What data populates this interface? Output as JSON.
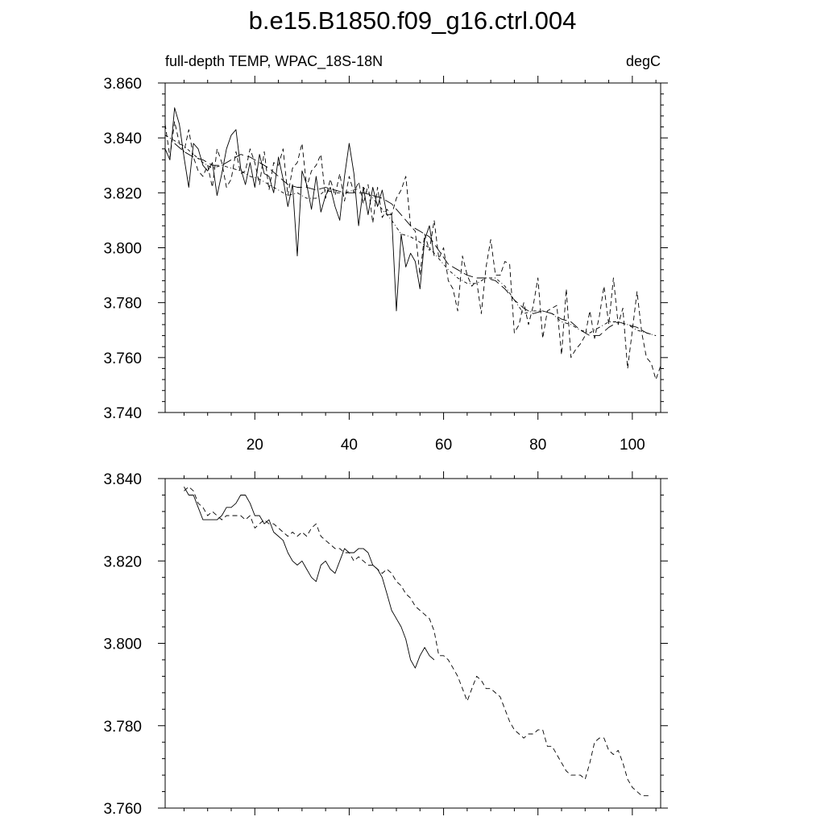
{
  "title": "b.e15.B1850.f09_g16.ctrl.004",
  "chart_data": [
    {
      "type": "line",
      "left_label": "full-depth TEMP, WPAC_18S-18N",
      "right_label": "degC",
      "xlim": [
        1,
        106
      ],
      "ylim": [
        3.74,
        3.86
      ],
      "x_ticks": [
        20,
        40,
        60,
        80,
        100
      ],
      "x_tick_labels": [
        "20",
        "40",
        "60",
        "80",
        "100"
      ],
      "y_ticks": [
        3.74,
        3.76,
        3.78,
        3.8,
        3.82,
        3.84,
        3.86
      ],
      "y_tick_labels": [
        "3.740",
        "3.760",
        "3.780",
        "3.800",
        "3.820",
        "3.840",
        "3.860"
      ],
      "series": [
        {
          "style": "solid",
          "x": [
            1,
            2,
            3,
            4,
            5,
            6,
            7,
            8,
            9,
            10,
            11,
            12,
            13,
            14,
            15,
            16,
            17,
            18,
            19,
            20,
            21,
            22,
            23,
            24,
            25,
            26,
            27,
            28,
            29,
            30,
            31,
            32,
            33,
            34,
            35,
            36,
            37,
            38,
            39,
            40,
            41,
            42,
            43,
            44,
            45,
            46,
            47,
            48,
            49,
            50,
            51,
            52,
            53,
            54,
            55,
            56,
            57,
            58
          ],
          "values": [
            3.836,
            3.832,
            3.851,
            3.845,
            3.833,
            3.822,
            3.838,
            3.836,
            3.83,
            3.828,
            3.831,
            3.819,
            3.827,
            3.836,
            3.841,
            3.843,
            3.829,
            3.823,
            3.831,
            3.822,
            3.834,
            3.827,
            3.826,
            3.82,
            3.833,
            3.825,
            3.815,
            3.823,
            3.797,
            3.828,
            3.823,
            3.814,
            3.826,
            3.813,
            3.819,
            3.822,
            3.815,
            3.81,
            3.826,
            3.838,
            3.827,
            3.808,
            3.822,
            3.812,
            3.822,
            3.815,
            3.821,
            3.812,
            3.812,
            3.777,
            3.805,
            3.793,
            3.798,
            3.795,
            3.785,
            3.803,
            3.808,
            3.797
          ]
        },
        {
          "style": "dashed",
          "x": [
            1,
            2,
            3,
            4,
            5,
            6,
            7,
            8,
            9,
            10,
            11,
            12,
            13,
            14,
            15,
            16,
            17,
            18,
            19,
            20,
            21,
            22,
            23,
            24,
            25,
            26,
            27,
            28,
            29,
            30,
            31,
            32,
            33,
            34,
            35,
            36,
            37,
            38,
            39,
            40,
            41,
            42,
            43,
            44,
            45,
            46,
            47,
            48,
            49,
            50,
            51,
            52,
            53,
            54,
            55,
            56,
            57,
            58,
            59,
            60,
            61,
            62,
            63,
            64,
            65,
            66,
            67,
            68,
            69,
            70,
            71,
            72,
            73,
            74,
            75,
            76,
            77,
            78,
            79,
            80,
            81,
            82,
            83,
            84,
            85,
            86,
            87,
            88,
            89,
            90,
            91,
            92,
            93,
            94,
            95,
            96,
            97,
            98,
            99,
            100,
            101,
            102,
            103,
            104,
            105,
            106
          ],
          "values": [
            3.845,
            3.833,
            3.846,
            3.838,
            3.835,
            3.843,
            3.833,
            3.828,
            3.826,
            3.83,
            3.822,
            3.836,
            3.831,
            3.822,
            3.825,
            3.835,
            3.827,
            3.828,
            3.836,
            3.831,
            3.823,
            3.835,
            3.821,
            3.831,
            3.83,
            3.836,
            3.819,
            3.829,
            3.831,
            3.838,
            3.822,
            3.828,
            3.83,
            3.834,
            3.818,
            3.825,
            3.819,
            3.827,
            3.817,
            3.826,
            3.82,
            3.824,
            3.816,
            3.823,
            3.809,
            3.822,
            3.811,
            3.814,
            3.812,
            3.818,
            3.821,
            3.826,
            3.808,
            3.806,
            3.79,
            3.805,
            3.799,
            3.81,
            3.796,
            3.8,
            3.788,
            3.785,
            3.777,
            3.797,
            3.79,
            3.786,
            3.788,
            3.776,
            3.793,
            3.803,
            3.79,
            3.79,
            3.795,
            3.794,
            3.769,
            3.772,
            3.78,
            3.772,
            3.779,
            3.789,
            3.767,
            3.777,
            3.778,
            3.779,
            3.761,
            3.785,
            3.76,
            3.763,
            3.765,
            3.768,
            3.777,
            3.767,
            3.775,
            3.786,
            3.772,
            3.789,
            3.772,
            3.778,
            3.756,
            3.77,
            3.784,
            3.769,
            3.76,
            3.758,
            3.752,
            3.757
          ]
        },
        {
          "style": "dash-dot",
          "x": [
            1,
            3,
            5,
            7,
            9,
            11,
            13,
            15,
            17,
            19,
            21,
            23,
            25,
            27,
            29,
            31,
            33,
            35,
            37,
            39,
            41,
            43,
            45,
            47,
            49,
            51,
            53,
            55,
            57,
            59,
            61,
            63,
            65,
            67,
            69,
            71,
            73,
            75,
            77,
            79,
            81,
            83,
            85,
            87,
            89,
            91,
            93,
            95,
            97,
            99,
            101,
            103,
            105
          ],
          "values": [
            3.841,
            3.839,
            3.837,
            3.834,
            3.831,
            3.829,
            3.83,
            3.829,
            3.828,
            3.826,
            3.825,
            3.823,
            3.821,
            3.819,
            3.82,
            3.818,
            3.818,
            3.821,
            3.82,
            3.82,
            3.821,
            3.822,
            3.818,
            3.814,
            3.81,
            3.805,
            3.804,
            3.802,
            3.8,
            3.796,
            3.792,
            3.789,
            3.787,
            3.787,
            3.789,
            3.789,
            3.786,
            3.781,
            3.776,
            3.777,
            3.777,
            3.776,
            3.773,
            3.772,
            3.77,
            3.769,
            3.771,
            3.773,
            3.773,
            3.772,
            3.77,
            3.769,
            3.768
          ]
        },
        {
          "style": "long-dash",
          "x": [
            3,
            5,
            7,
            9,
            11,
            13,
            15,
            17,
            19,
            21,
            23,
            25,
            27,
            29,
            31,
            33,
            35,
            37,
            39,
            41,
            43,
            45,
            47,
            49,
            51,
            53,
            55,
            57,
            59,
            61,
            63,
            65,
            67,
            69,
            71,
            73,
            75,
            77,
            79,
            81,
            83,
            85,
            87,
            89,
            91,
            93,
            95,
            97,
            99,
            101,
            103,
            105
          ],
          "values": [
            3.838,
            3.835,
            3.833,
            3.832,
            3.83,
            3.83,
            3.832,
            3.834,
            3.833,
            3.831,
            3.829,
            3.826,
            3.823,
            3.822,
            3.822,
            3.821,
            3.822,
            3.821,
            3.82,
            3.82,
            3.82,
            3.819,
            3.818,
            3.816,
            3.812,
            3.808,
            3.806,
            3.804,
            3.799,
            3.794,
            3.792,
            3.79,
            3.789,
            3.789,
            3.788,
            3.785,
            3.781,
            3.778,
            3.776,
            3.777,
            3.776,
            3.774,
            3.773,
            3.77,
            3.768,
            3.768,
            3.771,
            3.773,
            3.772,
            3.771,
            3.769,
            3.768
          ]
        }
      ]
    },
    {
      "type": "line",
      "xlim": [
        1,
        106
      ],
      "ylim": [
        3.76,
        3.84
      ],
      "x_ticks": [
        20,
        40,
        60,
        80,
        100
      ],
      "y_ticks": [
        3.76,
        3.78,
        3.8,
        3.82,
        3.84
      ],
      "y_tick_labels": [
        "3.760",
        "3.780",
        "3.800",
        "3.820",
        "3.840"
      ],
      "series": [
        {
          "style": "solid",
          "x": [
            5,
            6,
            7,
            8,
            9,
            10,
            11,
            12,
            13,
            14,
            15,
            16,
            17,
            18,
            19,
            20,
            21,
            22,
            23,
            24,
            25,
            26,
            27,
            28,
            29,
            30,
            31,
            32,
            33,
            34,
            35,
            36,
            37,
            38,
            39,
            40,
            41,
            42,
            43,
            44,
            45,
            46,
            47,
            48,
            49,
            50,
            51,
            52,
            53,
            54,
            55,
            56,
            57,
            58
          ],
          "values": [
            3.838,
            3.836,
            3.836,
            3.833,
            3.83,
            3.83,
            3.83,
            3.83,
            3.831,
            3.833,
            3.833,
            3.834,
            3.836,
            3.836,
            3.834,
            3.831,
            3.831,
            3.829,
            3.83,
            3.827,
            3.826,
            3.825,
            3.822,
            3.82,
            3.819,
            3.82,
            3.818,
            3.816,
            3.815,
            3.819,
            3.82,
            3.818,
            3.817,
            3.82,
            3.823,
            3.822,
            3.822,
            3.823,
            3.823,
            3.822,
            3.819,
            3.818,
            3.816,
            3.812,
            3.808,
            3.806,
            3.804,
            3.801,
            3.796,
            3.794,
            3.797,
            3.799,
            3.797,
            3.796
          ]
        },
        {
          "style": "dashed",
          "x": [
            5,
            6,
            7,
            8,
            9,
            10,
            11,
            12,
            13,
            14,
            15,
            16,
            17,
            18,
            19,
            20,
            21,
            22,
            23,
            24,
            25,
            26,
            27,
            28,
            29,
            30,
            31,
            32,
            33,
            34,
            35,
            36,
            37,
            38,
            39,
            40,
            41,
            42,
            43,
            44,
            45,
            46,
            47,
            48,
            49,
            50,
            51,
            52,
            53,
            54,
            55,
            56,
            57,
            58,
            59,
            60,
            61,
            62,
            63,
            64,
            65,
            66,
            67,
            68,
            69,
            70,
            71,
            72,
            73,
            74,
            75,
            76,
            77,
            78,
            79,
            80,
            81,
            82,
            83,
            84,
            85,
            86,
            87,
            88,
            89,
            90,
            91,
            92,
            93,
            94,
            95,
            96,
            97,
            98,
            99,
            100,
            101,
            102,
            103,
            104
          ],
          "values": [
            3.837,
            3.838,
            3.837,
            3.834,
            3.833,
            3.831,
            3.832,
            3.831,
            3.83,
            3.831,
            3.831,
            3.831,
            3.831,
            3.83,
            3.831,
            3.828,
            3.829,
            3.83,
            3.829,
            3.829,
            3.828,
            3.827,
            3.826,
            3.827,
            3.826,
            3.827,
            3.826,
            3.828,
            3.829,
            3.826,
            3.825,
            3.824,
            3.823,
            3.823,
            3.822,
            3.822,
            3.82,
            3.821,
            3.82,
            3.819,
            3.819,
            3.818,
            3.817,
            3.818,
            3.817,
            3.815,
            3.814,
            3.812,
            3.811,
            3.809,
            3.808,
            3.807,
            3.806,
            3.803,
            3.797,
            3.797,
            3.796,
            3.794,
            3.792,
            3.789,
            3.786,
            3.789,
            3.792,
            3.791,
            3.789,
            3.789,
            3.788,
            3.787,
            3.784,
            3.781,
            3.779,
            3.778,
            3.777,
            3.778,
            3.778,
            3.779,
            3.779,
            3.775,
            3.775,
            3.773,
            3.771,
            3.769,
            3.768,
            3.768,
            3.768,
            3.767,
            3.771,
            3.776,
            3.777,
            3.777,
            3.774,
            3.773,
            3.774,
            3.771,
            3.767,
            3.765,
            3.764,
            3.763,
            3.763,
            3.763
          ]
        }
      ]
    }
  ]
}
